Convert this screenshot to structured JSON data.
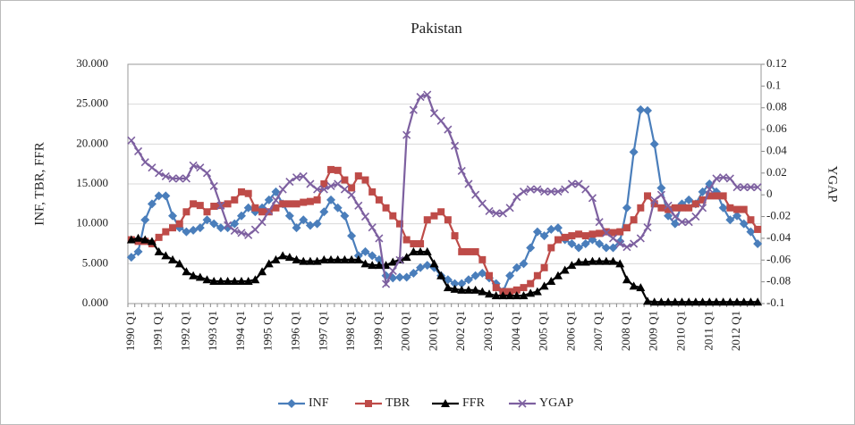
{
  "chart_data": {
    "type": "line",
    "title": "Pakistan",
    "y_label": "INF, TBR, FFR",
    "y2_label": "YGAP",
    "categories": [
      "1990 Q1",
      null,
      null,
      null,
      "1991 Q1",
      null,
      null,
      null,
      "1992 Q1",
      null,
      null,
      null,
      "1993 Q1",
      null,
      null,
      null,
      "1994 Q1",
      null,
      null,
      null,
      "1995 Q1",
      null,
      null,
      null,
      "1996 Q1",
      null,
      null,
      null,
      "1997 Q1",
      null,
      null,
      null,
      "1998 Q1",
      null,
      null,
      null,
      "1999 Q1",
      null,
      null,
      null,
      "2000 Q1",
      null,
      null,
      null,
      "2001 Q1",
      null,
      null,
      null,
      "2002 Q1",
      null,
      null,
      null,
      "2003 Q1",
      null,
      null,
      null,
      "2004 Q1",
      null,
      null,
      null,
      "2005 Q1",
      null,
      null,
      null,
      "2006 Q1",
      null,
      null,
      null,
      "2007 Q1",
      null,
      null,
      null,
      "2008 Q1",
      null,
      null,
      null,
      "2009 Q1",
      null,
      null,
      null,
      "2010 Q1",
      null,
      null,
      null,
      "2011 Q1",
      null,
      null,
      null,
      "2012 Q1",
      null,
      null,
      null
    ],
    "ylim": [
      0,
      30
    ],
    "yticks": [
      {
        "value": 0,
        "label": "0.000"
      },
      {
        "value": 5,
        "label": "5.000"
      },
      {
        "value": 10,
        "label": "10.000"
      },
      {
        "value": 15,
        "label": "15.000"
      },
      {
        "value": 20,
        "label": "20.000"
      },
      {
        "value": 25,
        "label": "25.000"
      },
      {
        "value": 30,
        "label": "30.000"
      }
    ],
    "y2lim": [
      -0.1,
      0.12
    ],
    "y2ticks": [
      -0.1,
      -0.08,
      -0.06,
      -0.04,
      -0.02,
      0,
      0.02,
      0.04,
      0.06,
      0.08,
      0.1,
      0.12
    ],
    "grid": true,
    "legend": "bottom",
    "series": [
      {
        "name": "INF",
        "color": "#4a7ebb",
        "marker": "diamond",
        "values": [
          5.8,
          6.5,
          10.5,
          12.5,
          13.5,
          13.5,
          11.0,
          9.5,
          9.0,
          9.2,
          9.5,
          10.5,
          10.0,
          9.5,
          9.5,
          10.0,
          11.0,
          12.0,
          11.5,
          12.0,
          13.0,
          14.0,
          12.5,
          11.0,
          9.5,
          10.5,
          9.8,
          10.0,
          11.5,
          13.0,
          12.0,
          11.0,
          8.5,
          6.0,
          6.5,
          6.0,
          5.5,
          3.5,
          3.2,
          3.3,
          3.3,
          3.8,
          4.5,
          4.8,
          4.5,
          3.5,
          3.0,
          2.5,
          2.5,
          3.0,
          3.5,
          3.8,
          3.2,
          2.5,
          1.5,
          3.5,
          4.5,
          5.0,
          7.0,
          9.0,
          8.5,
          9.3,
          9.5,
          8.0,
          7.5,
          7.0,
          7.5,
          8.0,
          7.5,
          7.0,
          7.0,
          7.8,
          12.0,
          19.0,
          24.3,
          24.2,
          20.0,
          14.5,
          11.0,
          10.0,
          12.5,
          13.0,
          12.5,
          14.0,
          15.0,
          14.0,
          12.0,
          10.5,
          11.0,
          10.0,
          9.0,
          7.5
        ]
      },
      {
        "name": "TBR",
        "color": "#be4b48",
        "marker": "square",
        "values": [
          8.0,
          7.8,
          7.8,
          7.5,
          8.3,
          9.0,
          9.5,
          10.0,
          11.5,
          12.5,
          12.3,
          11.5,
          12.2,
          12.3,
          12.5,
          13.0,
          14.0,
          13.8,
          12.0,
          11.5,
          11.5,
          12.0,
          12.5,
          12.5,
          12.5,
          12.7,
          12.8,
          13.0,
          15.0,
          16.8,
          16.7,
          15.5,
          14.5,
          16.0,
          15.5,
          14.0,
          13.0,
          12.0,
          11.0,
          10.0,
          8.0,
          7.5,
          7.5,
          10.5,
          11.0,
          11.5,
          10.5,
          8.5,
          6.5,
          6.5,
          6.5,
          5.5,
          3.5,
          2.0,
          1.5,
          1.5,
          1.7,
          2.0,
          2.5,
          3.5,
          4.5,
          7.0,
          8.0,
          8.3,
          8.5,
          8.7,
          8.5,
          8.7,
          8.8,
          9.0,
          8.9,
          9.0,
          9.5,
          10.5,
          12.0,
          13.5,
          12.5,
          12.0,
          11.8,
          12.0,
          12.0,
          12.0,
          12.5,
          13.0,
          13.5,
          13.5,
          13.5,
          12.0,
          11.8,
          11.8,
          10.5,
          9.3
        ]
      },
      {
        "name": "FFR",
        "color": "#000000",
        "marker": "triangle",
        "values": [
          8.0,
          8.2,
          8.0,
          7.8,
          6.5,
          6.0,
          5.5,
          5.0,
          4.0,
          3.5,
          3.3,
          3.0,
          2.8,
          2.8,
          2.8,
          2.8,
          2.8,
          2.8,
          3.0,
          4.0,
          5.0,
          5.5,
          6.0,
          5.8,
          5.5,
          5.3,
          5.3,
          5.3,
          5.5,
          5.5,
          5.5,
          5.5,
          5.5,
          5.5,
          5.0,
          4.8,
          4.8,
          4.8,
          5.2,
          5.5,
          5.8,
          6.5,
          6.5,
          6.5,
          5.0,
          3.5,
          2.0,
          1.8,
          1.7,
          1.7,
          1.7,
          1.5,
          1.2,
          1.0,
          1.0,
          1.0,
          1.0,
          1.0,
          1.3,
          1.5,
          2.2,
          2.8,
          3.5,
          4.2,
          4.8,
          5.2,
          5.2,
          5.3,
          5.3,
          5.3,
          5.3,
          5.0,
          3.0,
          2.2,
          2.0,
          0.3,
          0.2,
          0.2,
          0.2,
          0.2,
          0.2,
          0.2,
          0.2,
          0.2,
          0.2,
          0.2,
          0.2,
          0.2,
          0.2,
          0.2,
          0.2,
          0.2
        ]
      },
      {
        "name": "YGAP",
        "color": "#7d60a0",
        "marker": "x",
        "axis": "y2",
        "values": [
          0.05,
          0.04,
          0.03,
          0.025,
          0.02,
          0.017,
          0.015,
          0.015,
          0.015,
          0.027,
          0.025,
          0.02,
          0.008,
          -0.01,
          -0.028,
          -0.033,
          -0.035,
          -0.037,
          -0.032,
          -0.025,
          -0.015,
          -0.005,
          0.005,
          0.012,
          0.016,
          0.017,
          0.01,
          0.005,
          0.005,
          0.008,
          0.01,
          0.005,
          0.0,
          -0.01,
          -0.02,
          -0.03,
          -0.04,
          -0.082,
          -0.07,
          -0.06,
          0.055,
          0.078,
          0.09,
          0.092,
          0.075,
          0.068,
          0.06,
          0.045,
          0.022,
          0.01,
          0.0,
          -0.008,
          -0.015,
          -0.017,
          -0.017,
          -0.012,
          -0.002,
          0.003,
          0.005,
          0.005,
          0.003,
          0.003,
          0.003,
          0.005,
          0.01,
          0.01,
          0.005,
          -0.003,
          -0.025,
          -0.035,
          -0.04,
          -0.045,
          -0.048,
          -0.045,
          -0.04,
          -0.03,
          -0.005,
          0.0,
          -0.01,
          -0.02,
          -0.025,
          -0.025,
          -0.02,
          -0.012,
          0.005,
          0.015,
          0.016,
          0.015,
          0.007,
          0.007,
          0.007,
          0.007
        ]
      }
    ]
  }
}
